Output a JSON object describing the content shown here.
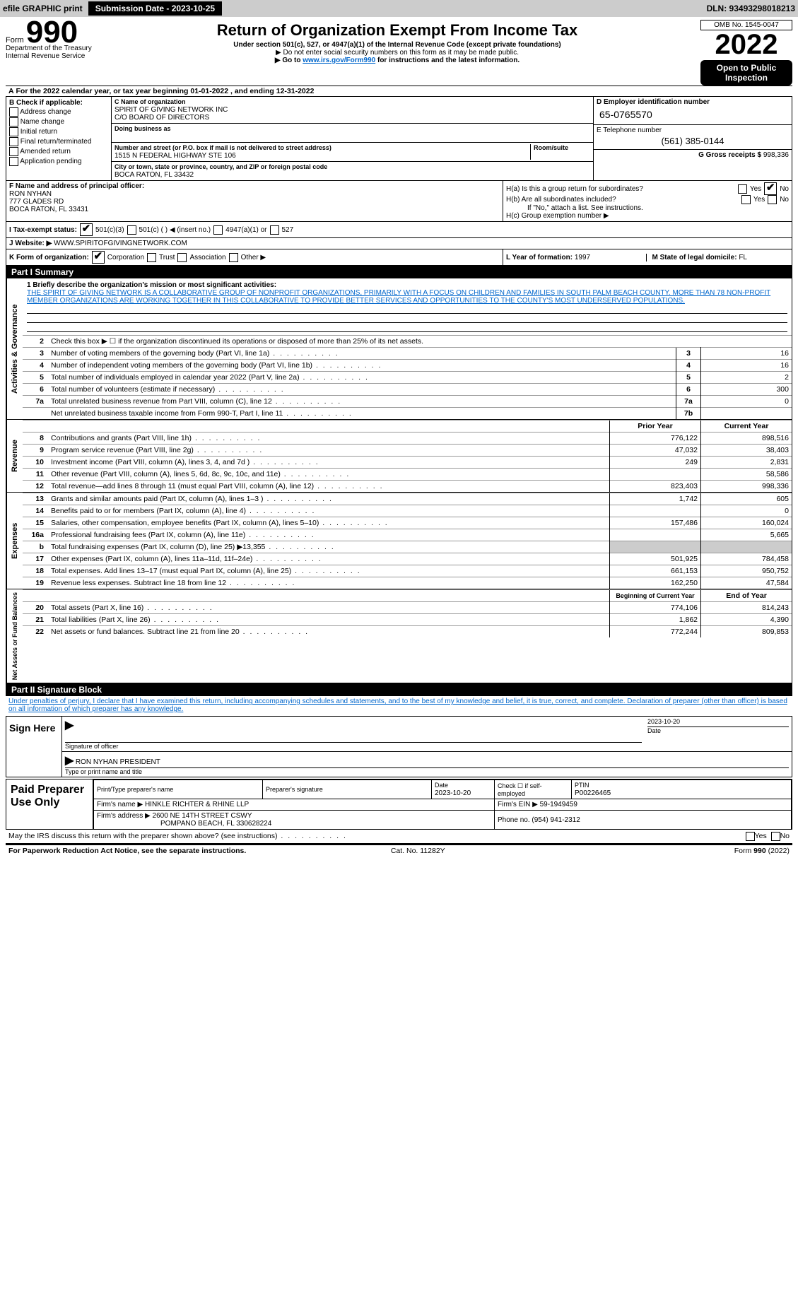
{
  "topbar": {
    "efile": "efile GRAPHIC print",
    "submission_btn": "Submission Date - 2023-10-25",
    "dln": "DLN: 93493298018213"
  },
  "header": {
    "form_label": "Form",
    "form_number": "990",
    "title": "Return of Organization Exempt From Income Tax",
    "subtitle": "Under section 501(c), 527, or 4947(a)(1) of the Internal Revenue Code (except private foundations)",
    "note1": "▶ Do not enter social security numbers on this form as it may be made public.",
    "note2_pre": "▶ Go to ",
    "note2_link": "www.irs.gov/Form990",
    "note2_post": " for instructions and the latest information.",
    "dept": "Department of the Treasury",
    "irs": "Internal Revenue Service",
    "omb": "OMB No. 1545-0047",
    "year": "2022",
    "open": "Open to Public Inspection"
  },
  "section_a": {
    "line": "For the 2022 calendar year, or tax year beginning 01-01-2022    , and ending 12-31-2022",
    "b_label": "B Check if applicable:",
    "b_items": [
      "Address change",
      "Name change",
      "Initial return",
      "Final return/terminated",
      "Amended return",
      "Application pending"
    ],
    "c_label": "C Name of organization",
    "org_name": "SPIRIT OF GIVING NETWORK INC",
    "org_care": "C/O BOARD OF DIRECTORS",
    "dba_label": "Doing business as",
    "addr_label": "Number and street (or P.O. box if mail is not delivered to street address)",
    "room_label": "Room/suite",
    "addr": "1515 N FEDERAL HIGHWAY STE 106",
    "city_label": "City or town, state or province, country, and ZIP or foreign postal code",
    "city": "BOCA RATON, FL  33432",
    "d_label": "D Employer identification number",
    "ein": "65-0765570",
    "e_label": "E Telephone number",
    "phone": "(561) 385-0144",
    "g_label": "G Gross receipts $",
    "gross": "998,336"
  },
  "section_f": {
    "f_label": "F  Name and address of principal officer:",
    "name": "RON NYHAN",
    "addr1": "777 GLADES RD",
    "addr2": "BOCA RATON, FL  33431",
    "ha": "H(a)  Is this a group return for subordinates?",
    "hb": "H(b)  Are all subordinates included?",
    "hb_note": "If \"No,\" attach a list. See instructions.",
    "hc": "H(c)  Group exemption number ▶",
    "yes": "Yes",
    "no": "No"
  },
  "tax_status": {
    "i_label": "I   Tax-exempt status:",
    "opt1": "501(c)(3)",
    "opt2": "501(c) (    ) ◀ (insert no.)",
    "opt3": "4947(a)(1) or",
    "opt4": "527",
    "j_label": "J   Website: ▶",
    "website": "WWW.SPIRITOFGIVINGNETWORK.COM",
    "k_label": "K Form of organization:",
    "k_opts": [
      "Corporation",
      "Trust",
      "Association",
      "Other ▶"
    ],
    "l_label": "L Year of formation:",
    "l_val": "1997",
    "m_label": "M State of legal domicile:",
    "m_val": "FL"
  },
  "part1": {
    "header": "Part I     Summary",
    "line1_label": "1  Briefly describe the organization's mission or most significant activities:",
    "mission": "THE SPIRIT OF GIVING NETWORK IS A COLLABORATIVE GROUP OF NONPROFIT ORGANIZATIONS, PRIMARILY WITH A FOCUS ON CHILDREN AND FAMILIES IN SOUTH PALM BEACH COUNTY. MORE THAN 78 NON-PROFIT MEMBER ORGANIZATIONS ARE WORKING TOGETHER IN THIS COLLABORATIVE TO PROVIDE BETTER SERVICES AND OPPORTUNITIES TO THE COUNTY'S MOST UNDERSERVED POPULATIONS.",
    "line2": "Check this box ▶ ☐ if the organization discontinued its operations or disposed of more than 25% of its net assets.",
    "vlabels": {
      "gov": "Activities & Governance",
      "rev": "Revenue",
      "exp": "Expenses",
      "net": "Net Assets or Fund Balances"
    },
    "rows_top": [
      {
        "n": "3",
        "t": "Number of voting members of the governing body (Part VI, line 1a)",
        "b": "3",
        "v": "16"
      },
      {
        "n": "4",
        "t": "Number of independent voting members of the governing body (Part VI, line 1b)",
        "b": "4",
        "v": "16"
      },
      {
        "n": "5",
        "t": "Total number of individuals employed in calendar year 2022 (Part V, line 2a)",
        "b": "5",
        "v": "2"
      },
      {
        "n": "6",
        "t": "Total number of volunteers (estimate if necessary)",
        "b": "6",
        "v": "300"
      },
      {
        "n": "7a",
        "t": "Total unrelated business revenue from Part VIII, column (C), line 12",
        "b": "7a",
        "v": "0"
      },
      {
        "n": "",
        "t": "Net unrelated business taxable income from Form 990-T, Part I, line 11",
        "b": "7b",
        "v": ""
      }
    ],
    "col_hdr_prior": "Prior Year",
    "col_hdr_curr": "Current Year",
    "rows_rev": [
      {
        "n": "8",
        "t": "Contributions and grants (Part VIII, line 1h)",
        "p": "776,122",
        "c": "898,516"
      },
      {
        "n": "9",
        "t": "Program service revenue (Part VIII, line 2g)",
        "p": "47,032",
        "c": "38,403"
      },
      {
        "n": "10",
        "t": "Investment income (Part VIII, column (A), lines 3, 4, and 7d )",
        "p": "249",
        "c": "2,831"
      },
      {
        "n": "11",
        "t": "Other revenue (Part VIII, column (A), lines 5, 6d, 8c, 9c, 10c, and 11e)",
        "p": "",
        "c": "58,586"
      },
      {
        "n": "12",
        "t": "Total revenue—add lines 8 through 11 (must equal Part VIII, column (A), line 12)",
        "p": "823,403",
        "c": "998,336"
      }
    ],
    "rows_exp": [
      {
        "n": "13",
        "t": "Grants and similar amounts paid (Part IX, column (A), lines 1–3 )",
        "p": "1,742",
        "c": "605"
      },
      {
        "n": "14",
        "t": "Benefits paid to or for members (Part IX, column (A), line 4)",
        "p": "",
        "c": "0"
      },
      {
        "n": "15",
        "t": "Salaries, other compensation, employee benefits (Part IX, column (A), lines 5–10)",
        "p": "157,486",
        "c": "160,024"
      },
      {
        "n": "16a",
        "t": "Professional fundraising fees (Part IX, column (A), line 11e)",
        "p": "",
        "c": "5,665"
      },
      {
        "n": "b",
        "t": "Total fundraising expenses (Part IX, column (D), line 25) ▶13,355",
        "p": "shade",
        "c": "shade"
      },
      {
        "n": "17",
        "t": "Other expenses (Part IX, column (A), lines 11a–11d, 11f–24e)",
        "p": "501,925",
        "c": "784,458"
      },
      {
        "n": "18",
        "t": "Total expenses. Add lines 13–17 (must equal Part IX, column (A), line 25)",
        "p": "661,153",
        "c": "950,752"
      },
      {
        "n": "19",
        "t": "Revenue less expenses. Subtract line 18 from line 12",
        "p": "162,250",
        "c": "47,584"
      }
    ],
    "col_hdr_beg": "Beginning of Current Year",
    "col_hdr_end": "End of Year",
    "rows_net": [
      {
        "n": "20",
        "t": "Total assets (Part X, line 16)",
        "p": "774,106",
        "c": "814,243"
      },
      {
        "n": "21",
        "t": "Total liabilities (Part X, line 26)",
        "p": "1,862",
        "c": "4,390"
      },
      {
        "n": "22",
        "t": "Net assets or fund balances. Subtract line 21 from line 20",
        "p": "772,244",
        "c": "809,853"
      }
    ]
  },
  "part2": {
    "header": "Part II     Signature Block",
    "penalty": "Under penalties of perjury, I declare that I have examined this return, including accompanying schedules and statements, and to the best of my knowledge and belief, it is true, correct, and complete. Declaration of preparer (other than officer) is based on all information of which preparer has any knowledge.",
    "sign_here": "Sign Here",
    "sig_date": "2023-10-20",
    "sig_officer_lbl": "Signature of officer",
    "date_lbl": "Date",
    "officer_name": "RON NYHAN  PRESIDENT",
    "type_name_lbl": "Type or print name and title",
    "paid_prep": "Paid Preparer Use Only",
    "prep_name_lbl": "Print/Type preparer's name",
    "prep_sig_lbl": "Preparer's signature",
    "prep_date": "2023-10-20",
    "check_if": "Check ☐ if self-employed",
    "ptin_lbl": "PTIN",
    "ptin": "P00226465",
    "firm_name_lbl": "Firm's name    ▶",
    "firm_name": "HINKLE RICHTER & RHINE LLP",
    "firm_ein_lbl": "Firm's EIN ▶",
    "firm_ein": "59-1949459",
    "firm_addr_lbl": "Firm's address ▶",
    "firm_addr1": "2600 NE 14TH STREET CSWY",
    "firm_addr2": "POMPANO BEACH, FL  330628224",
    "phone_lbl": "Phone no.",
    "phone": "(954) 941-2312",
    "discuss": "May the IRS discuss this return with the preparer shown above? (see instructions)",
    "yes": "Yes",
    "no": "No"
  },
  "footer": {
    "left": "For Paperwork Reduction Act Notice, see the separate instructions.",
    "mid": "Cat. No. 11282Y",
    "right": "Form 990 (2022)"
  }
}
